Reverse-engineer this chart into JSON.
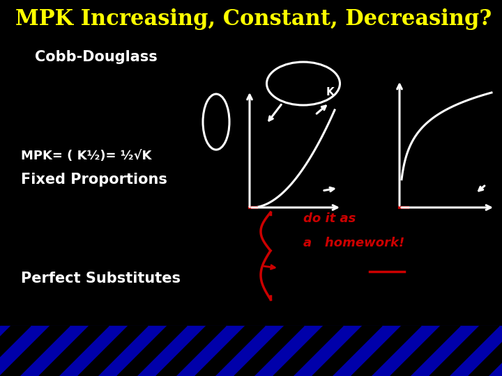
{
  "title": "MPK Increasing, Constant, Decreasing?",
  "title_color": "#ffff00",
  "title_fontsize": 22,
  "bg_color": "#000000",
  "label_cobb": "Cobb-Douglass",
  "label_fixed": "Fixed Proportions",
  "label_perfect": "Perfect Substitutes",
  "label_mpk": "MPK= ( K½)= ½√K",
  "text_color": "#ffffff",
  "red_color": "#cc0000",
  "stripe_color_dark": "#0000aa"
}
